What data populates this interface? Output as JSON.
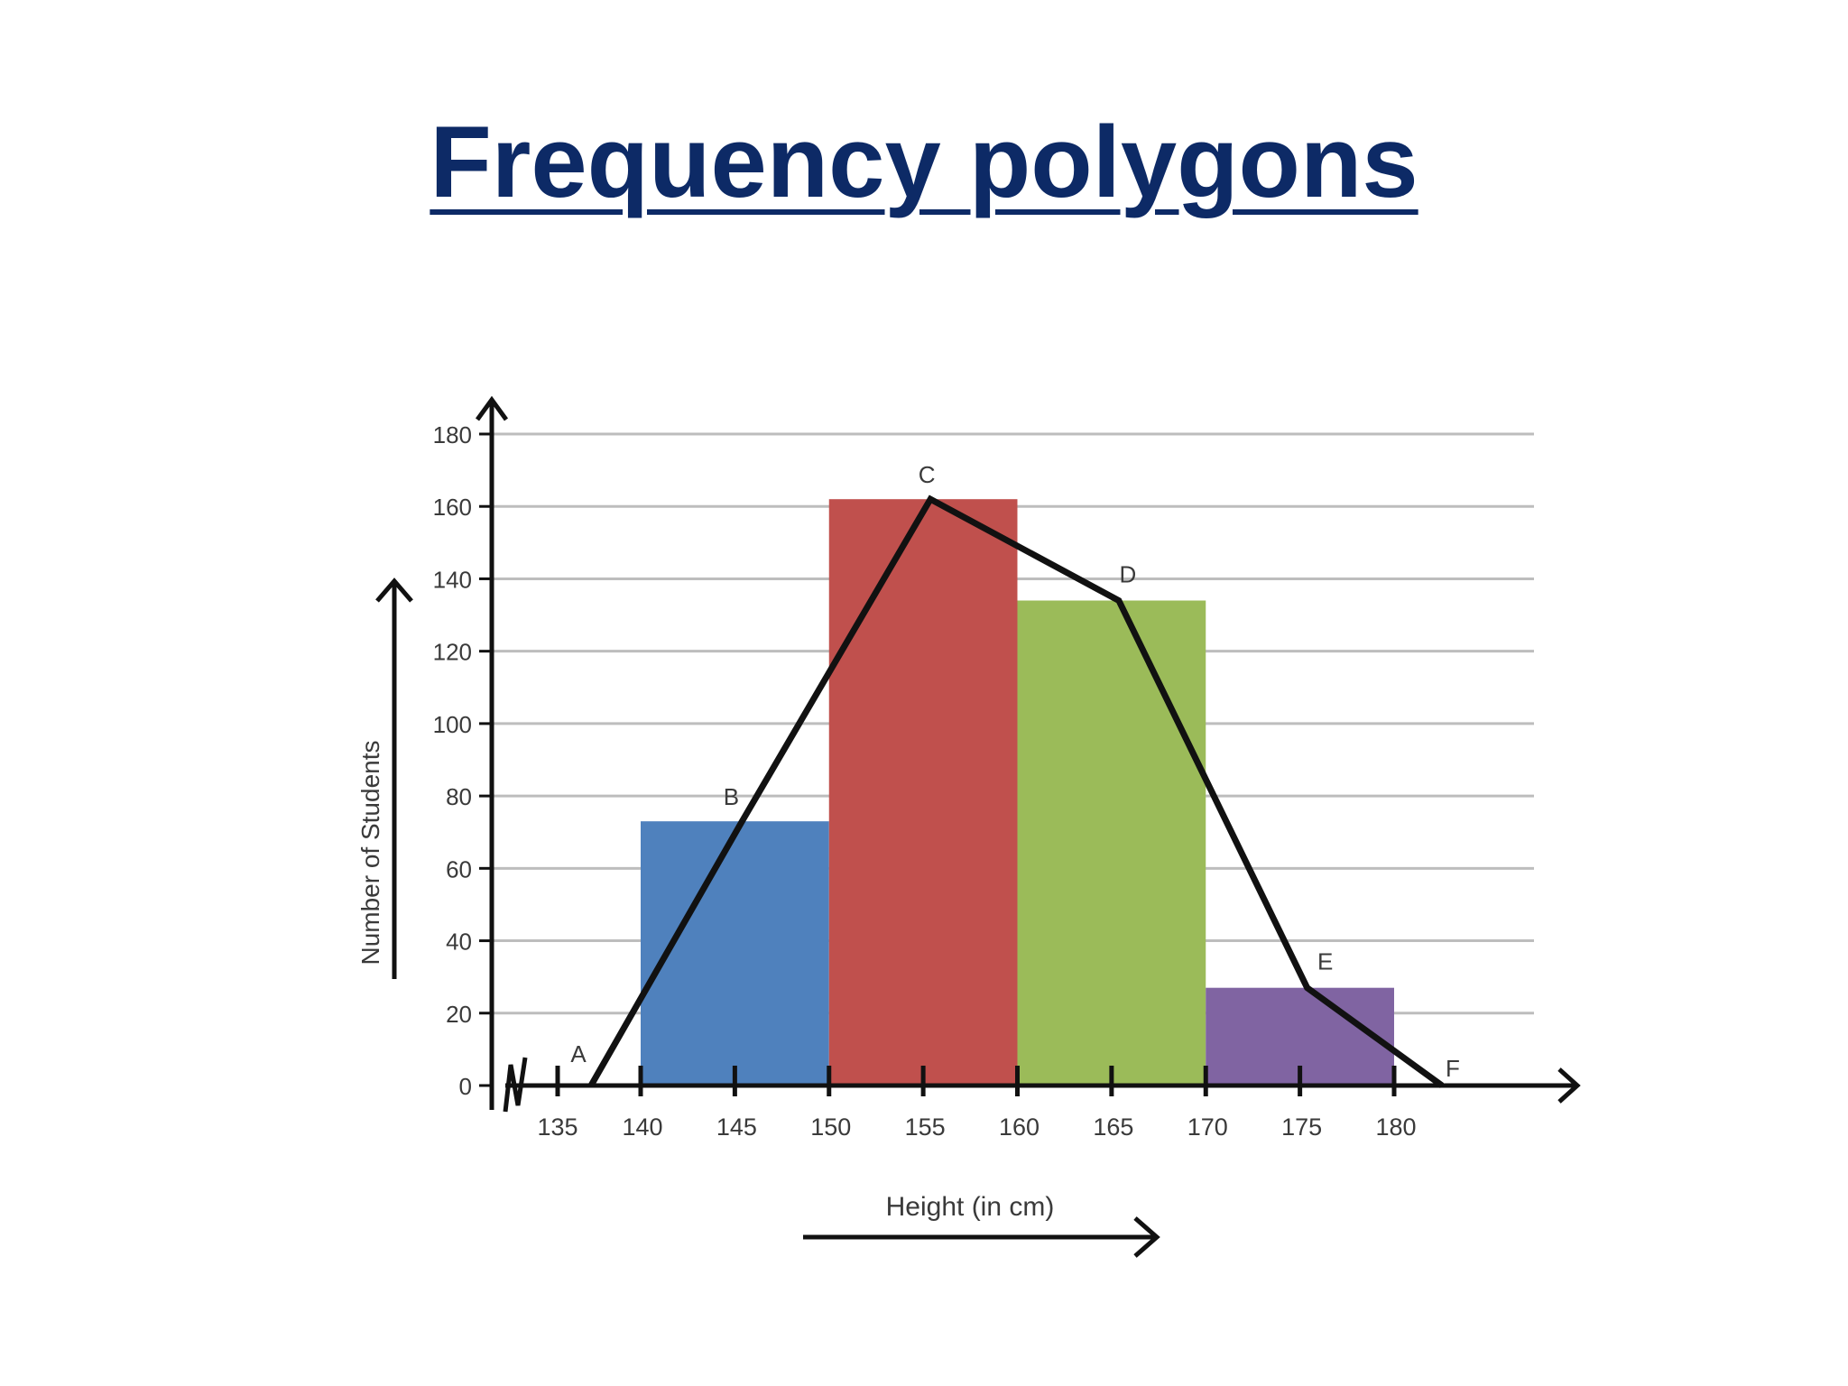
{
  "title": "Frequency polygons",
  "chart_data": {
    "type": "bar",
    "ylabel": "Number of Students",
    "xlabel": "Height (in cm)",
    "ylim": [
      0,
      180
    ],
    "yticks": [
      0,
      20,
      40,
      60,
      80,
      100,
      120,
      140,
      160,
      180
    ],
    "xticks": [
      135,
      140,
      145,
      150,
      155,
      160,
      165,
      170,
      175,
      180
    ],
    "grid": true,
    "bars": [
      {
        "from": 140,
        "to": 150,
        "value": 73,
        "color": "#4f81bd"
      },
      {
        "from": 150,
        "to": 160,
        "value": 162,
        "color": "#c0504d"
      },
      {
        "from": 160,
        "to": 170,
        "value": 134,
        "color": "#9bbb59"
      },
      {
        "from": 170,
        "to": 180,
        "value": 27,
        "color": "#8064a2"
      }
    ],
    "polygon": [
      {
        "label": "A",
        "x": 136,
        "y": 0
      },
      {
        "label": "B",
        "x": 145,
        "y": 73
      },
      {
        "label": "C",
        "x": 155,
        "y": 162
      },
      {
        "label": "D",
        "x": 165,
        "y": 134
      },
      {
        "label": "E",
        "x": 175,
        "y": 27
      },
      {
        "label": "F",
        "x": 183,
        "y": 0
      }
    ]
  }
}
